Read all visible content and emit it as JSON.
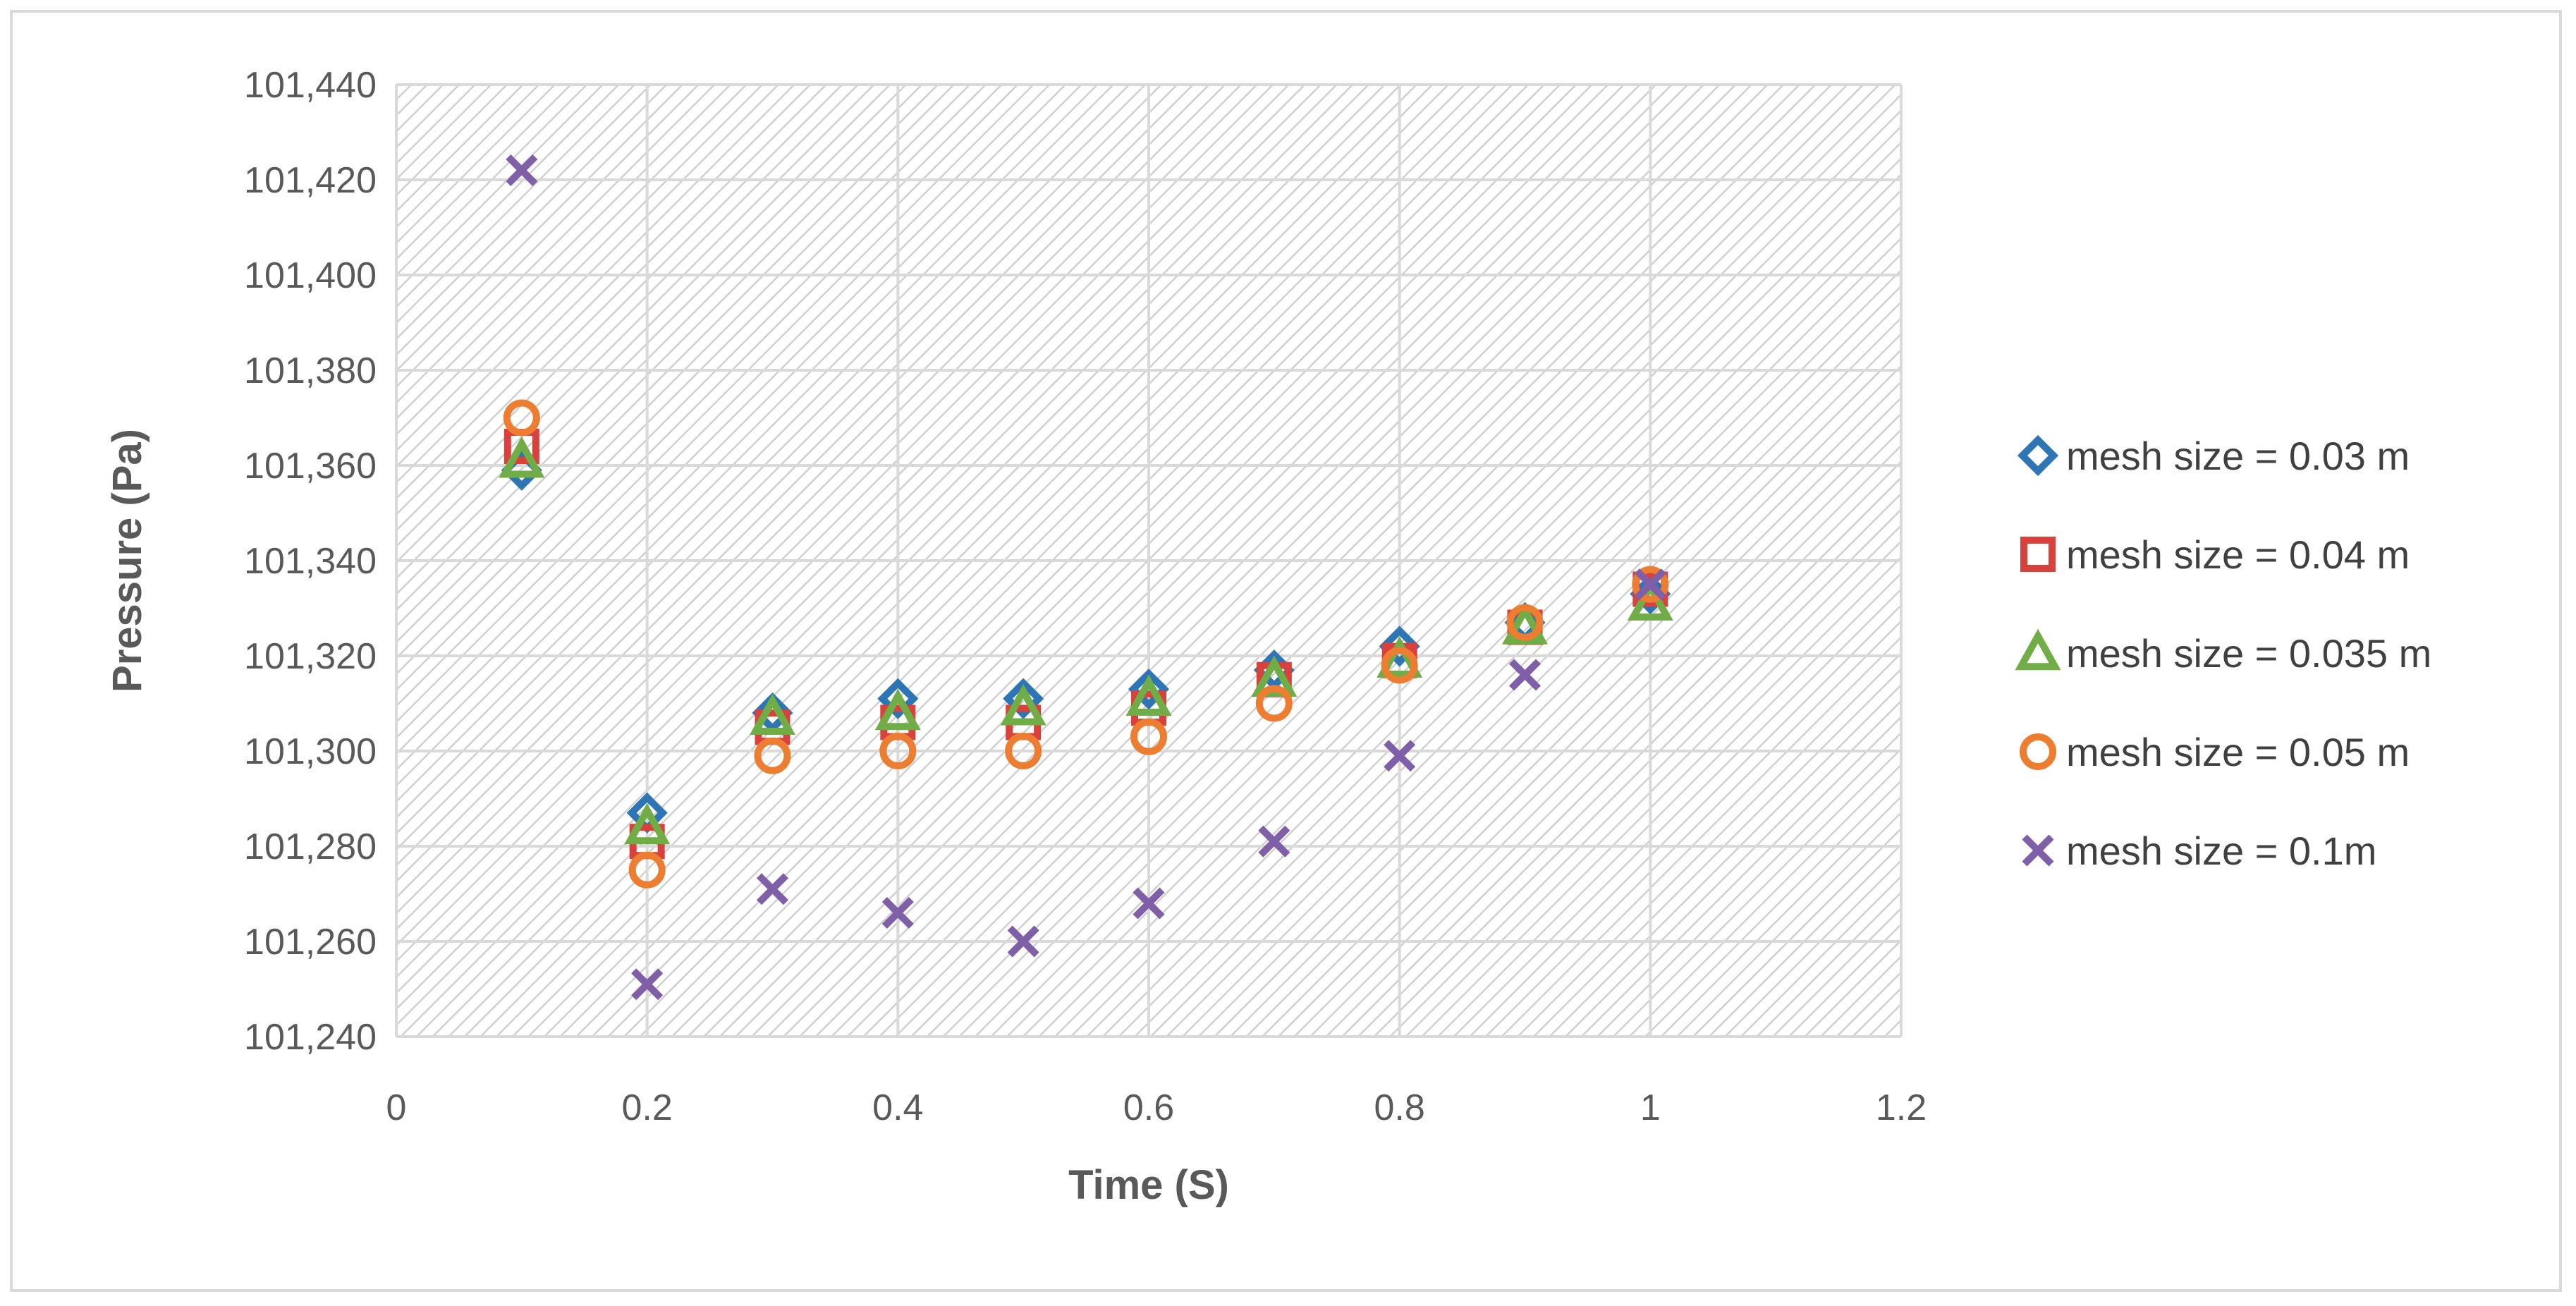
{
  "chart_data": {
    "type": "scatter",
    "title": "",
    "xlabel": "Time (S)",
    "ylabel": "Pressure (Pa)",
    "xlim": [
      0,
      1.2
    ],
    "ylim": [
      101240,
      101440
    ],
    "xticks": [
      0,
      0.2,
      0.4,
      0.6,
      0.8,
      1,
      1.2
    ],
    "xtick_labels": [
      "0",
      "0.2",
      "0.4",
      "0.6",
      "0.8",
      "1",
      "1.2"
    ],
    "yticks": [
      101240,
      101260,
      101280,
      101300,
      101320,
      101340,
      101360,
      101380,
      101400,
      101420,
      101440
    ],
    "ytick_labels": [
      "101,240",
      "101,260",
      "101,280",
      "101,300",
      "101,320",
      "101,340",
      "101,360",
      "101,380",
      "101,400",
      "101,420",
      "101,440"
    ],
    "grid": true,
    "legend_position": "right",
    "series": [
      {
        "name": "mesh size = 0.03 m",
        "marker": "diamond",
        "color": "#2e75b6",
        "x": [
          0.1,
          0.2,
          0.3,
          0.4,
          0.5,
          0.6,
          0.7,
          0.8,
          0.9,
          1.0
        ],
        "y": [
          101359,
          101287,
          101308,
          101311,
          101311,
          101313,
          101317,
          101322,
          101327,
          101333
        ]
      },
      {
        "name": "mesh size = 0.04 m",
        "marker": "square",
        "color": "#d9413d",
        "x": [
          0.1,
          0.2,
          0.3,
          0.4,
          0.5,
          0.6,
          0.7,
          0.8,
          0.9,
          1.0
        ],
        "y": [
          101364,
          101281,
          101305,
          101306,
          101306,
          101309,
          101315,
          101319,
          101326,
          101334
        ]
      },
      {
        "name": "mesh size = 0.035 m",
        "marker": "triangle",
        "color": "#70ad47",
        "x": [
          0.1,
          0.2,
          0.3,
          0.4,
          0.5,
          0.6,
          0.7,
          0.8,
          0.9,
          1.0
        ],
        "y": [
          101361,
          101284,
          101307,
          101308,
          101309,
          101311,
          101315,
          101319,
          101326,
          101331
        ]
      },
      {
        "name": "mesh size = 0.05 m",
        "marker": "circle",
        "color": "#ed7d31",
        "x": [
          0.1,
          0.2,
          0.3,
          0.4,
          0.5,
          0.6,
          0.7,
          0.8,
          0.9,
          1.0
        ],
        "y": [
          101370,
          101275,
          101299,
          101300,
          101300,
          101303,
          101310,
          101318,
          101327,
          101335
        ]
      },
      {
        "name": "mesh size = 0.1m",
        "marker": "x",
        "color": "#7f5fa8",
        "x": [
          0.1,
          0.2,
          0.3,
          0.4,
          0.5,
          0.6,
          0.7,
          0.8,
          0.9,
          1.0
        ],
        "y": [
          101422,
          101251,
          101271,
          101266,
          101260,
          101268,
          101281,
          101299,
          101316,
          101335
        ]
      }
    ]
  }
}
